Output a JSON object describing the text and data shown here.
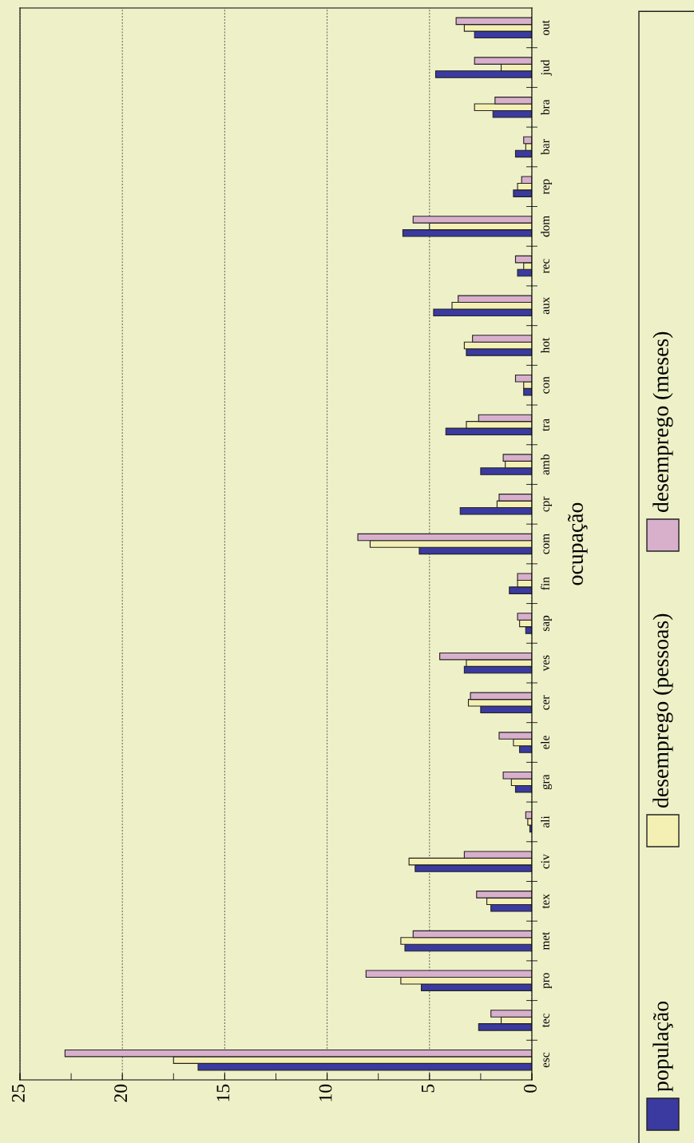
{
  "chart_data": {
    "type": "bar",
    "orientation": "horizontal",
    "ylabel": "ocupação",
    "categories": [
      "out",
      "jud",
      "bra",
      "bar",
      "rep",
      "dom",
      "rec",
      "aux",
      "hot",
      "con",
      "tra",
      "amb",
      "cpr",
      "com",
      "fin",
      "sap",
      "ves",
      "cer",
      "ele",
      "gra",
      "ali",
      "civ",
      "tex",
      "met",
      "pro",
      "tec",
      "esc"
    ],
    "series": [
      {
        "name": "população",
        "color": "#3a3aa0",
        "values": [
          2.8,
          4.7,
          1.9,
          0.8,
          0.9,
          6.3,
          0.7,
          4.8,
          3.2,
          0.4,
          4.2,
          2.5,
          3.5,
          5.5,
          1.1,
          0.3,
          3.3,
          2.5,
          0.6,
          0.8,
          0.1,
          5.7,
          2.0,
          6.2,
          5.4,
          2.6,
          16.3
        ]
      },
      {
        "name": "desemprego (pessoas)",
        "color": "#f4f0b4",
        "values": [
          3.3,
          1.5,
          2.8,
          0.3,
          0.7,
          5.0,
          0.4,
          3.9,
          3.3,
          0.4,
          3.2,
          1.3,
          1.7,
          7.9,
          0.7,
          0.6,
          3.2,
          3.1,
          0.9,
          1.0,
          0.2,
          6.0,
          2.2,
          6.4,
          6.4,
          1.5,
          17.5
        ]
      },
      {
        "name": "desemprego (meses)",
        "color": "#d8b0cc",
        "values": [
          3.7,
          2.8,
          1.8,
          0.4,
          0.5,
          5.8,
          0.8,
          3.6,
          2.9,
          0.8,
          2.6,
          1.4,
          1.6,
          8.5,
          0.7,
          0.7,
          4.5,
          3.0,
          1.6,
          1.4,
          0.3,
          3.3,
          2.7,
          5.8,
          8.1,
          2.0,
          22.8
        ]
      }
    ],
    "xlim": [
      25,
      0
    ],
    "xticks": [
      25,
      {
        "value": 22.5,
        "label": null
      },
      20,
      {
        "value": 17.5,
        "label": null
      },
      15,
      {
        "value": 12.5,
        "label": null
      },
      10,
      {
        "value": 7.5,
        "label": null
      },
      5,
      {
        "value": 2.5,
        "label": null
      },
      0
    ],
    "grid": "x",
    "legend": "right"
  }
}
